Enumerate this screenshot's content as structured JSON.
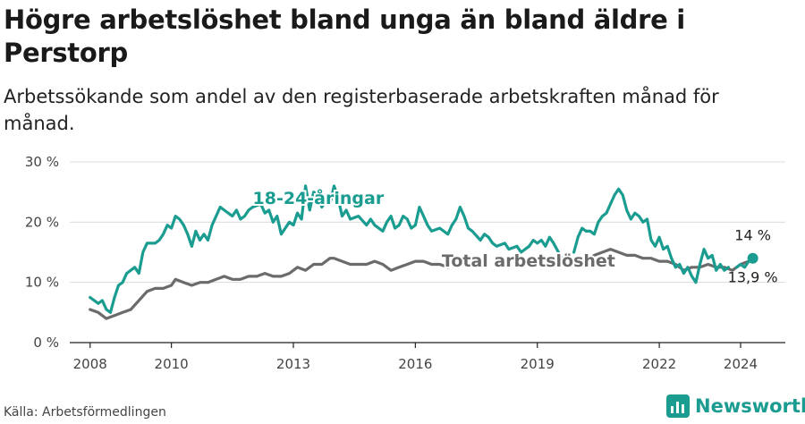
{
  "title": "Högre arbetslöshet bland unga än bland äldre i Perstorp",
  "subtitle": "Arbetssökande som andel av den registerbaserade arbetskraften månad för månad.",
  "source": "Källa: Arbetsförmedlingen",
  "brand": {
    "name": "Newsworthy",
    "icon": "bar-chart-logo-icon",
    "color": "#1a9c90"
  },
  "chart_data": {
    "type": "line",
    "xlim": [
      2007.5,
      2025.1
    ],
    "ylim": [
      0,
      30
    ],
    "x_ticks": [
      {
        "value": 2008,
        "label": "2008"
      },
      {
        "value": 2010,
        "label": "2010"
      },
      {
        "value": 2013,
        "label": "2013"
      },
      {
        "value": 2016,
        "label": "2016"
      },
      {
        "value": 2019,
        "label": "2019"
      },
      {
        "value": 2022,
        "label": "2022"
      },
      {
        "value": 2024,
        "label": "2024"
      }
    ],
    "y_ticks": [
      {
        "value": 0,
        "label": "0 %"
      },
      {
        "value": 10,
        "label": "10 %"
      },
      {
        "value": 20,
        "label": "20 %"
      },
      {
        "value": 30,
        "label": "30 %"
      }
    ],
    "grid": true,
    "series": [
      {
        "name": "18-24-åringar",
        "color": "#1a9c90",
        "end_label": "14 %",
        "points": [
          [
            2008.0,
            7.5
          ],
          [
            2008.2,
            6.5
          ],
          [
            2008.3,
            7.0
          ],
          [
            2008.4,
            5.5
          ],
          [
            2008.5,
            5.0
          ],
          [
            2008.6,
            7.5
          ],
          [
            2008.7,
            9.5
          ],
          [
            2008.8,
            10.0
          ],
          [
            2008.9,
            11.5
          ],
          [
            2009.0,
            12.0
          ],
          [
            2009.1,
            12.5
          ],
          [
            2009.2,
            11.5
          ],
          [
            2009.3,
            15.0
          ],
          [
            2009.4,
            16.5
          ],
          [
            2009.6,
            16.5
          ],
          [
            2009.7,
            17.0
          ],
          [
            2009.8,
            18.0
          ],
          [
            2009.9,
            19.5
          ],
          [
            2010.0,
            19.0
          ],
          [
            2010.1,
            21.0
          ],
          [
            2010.2,
            20.5
          ],
          [
            2010.3,
            19.5
          ],
          [
            2010.4,
            18.0
          ],
          [
            2010.5,
            16.0
          ],
          [
            2010.6,
            18.5
          ],
          [
            2010.7,
            17.0
          ],
          [
            2010.8,
            18.0
          ],
          [
            2010.9,
            17.0
          ],
          [
            2011.0,
            19.5
          ],
          [
            2011.1,
            21.0
          ],
          [
            2011.2,
            22.5
          ],
          [
            2011.3,
            22.0
          ],
          [
            2011.5,
            21.0
          ],
          [
            2011.6,
            22.0
          ],
          [
            2011.7,
            20.5
          ],
          [
            2011.8,
            21.0
          ],
          [
            2011.9,
            22.0
          ],
          [
            2012.0,
            22.5
          ],
          [
            2012.2,
            23.0
          ],
          [
            2012.3,
            21.5
          ],
          [
            2012.4,
            22.0
          ],
          [
            2012.5,
            20.0
          ],
          [
            2012.6,
            21.0
          ],
          [
            2012.7,
            18.0
          ],
          [
            2012.8,
            19.0
          ],
          [
            2012.9,
            20.0
          ],
          [
            2013.0,
            19.5
          ],
          [
            2013.1,
            21.5
          ],
          [
            2013.2,
            20.5
          ],
          [
            2013.3,
            26.0
          ],
          [
            2013.4,
            22.0
          ],
          [
            2013.5,
            25.0
          ],
          [
            2013.6,
            24.5
          ],
          [
            2013.7,
            22.5
          ],
          [
            2013.8,
            23.5
          ],
          [
            2013.9,
            23.0
          ],
          [
            2014.0,
            26.0
          ],
          [
            2014.1,
            24.0
          ],
          [
            2014.2,
            21.0
          ],
          [
            2014.3,
            22.0
          ],
          [
            2014.4,
            20.5
          ],
          [
            2014.6,
            21.0
          ],
          [
            2014.8,
            19.5
          ],
          [
            2014.9,
            20.5
          ],
          [
            2015.0,
            19.5
          ],
          [
            2015.2,
            18.5
          ],
          [
            2015.3,
            20.0
          ],
          [
            2015.4,
            21.0
          ],
          [
            2015.5,
            19.0
          ],
          [
            2015.6,
            19.5
          ],
          [
            2015.7,
            21.0
          ],
          [
            2015.8,
            20.5
          ],
          [
            2015.9,
            19.0
          ],
          [
            2016.0,
            19.5
          ],
          [
            2016.1,
            22.5
          ],
          [
            2016.2,
            21.0
          ],
          [
            2016.3,
            19.5
          ],
          [
            2016.4,
            18.5
          ],
          [
            2016.6,
            19.0
          ],
          [
            2016.8,
            18.0
          ],
          [
            2016.9,
            19.5
          ],
          [
            2017.0,
            20.5
          ],
          [
            2017.1,
            22.5
          ],
          [
            2017.2,
            21.0
          ],
          [
            2017.3,
            19.0
          ],
          [
            2017.4,
            18.5
          ],
          [
            2017.6,
            17.0
          ],
          [
            2017.7,
            18.0
          ],
          [
            2017.8,
            17.5
          ],
          [
            2017.9,
            16.5
          ],
          [
            2018.0,
            16.0
          ],
          [
            2018.2,
            16.5
          ],
          [
            2018.3,
            15.5
          ],
          [
            2018.5,
            16.0
          ],
          [
            2018.6,
            15.0
          ],
          [
            2018.8,
            16.0
          ],
          [
            2018.9,
            17.0
          ],
          [
            2019.0,
            16.5
          ],
          [
            2019.1,
            17.0
          ],
          [
            2019.2,
            16.0
          ],
          [
            2019.3,
            17.5
          ],
          [
            2019.4,
            16.5
          ],
          [
            2019.6,
            14.0
          ]
        ]
      },
      {
        "name": "18-24-åringar",
        "color": "#1a9c90",
        "points": [
          [
            2019.9,
            15.0
          ],
          [
            2020.0,
            17.5
          ],
          [
            2020.1,
            19.0
          ],
          [
            2020.2,
            18.5
          ],
          [
            2020.3,
            18.5
          ],
          [
            2020.4,
            18.0
          ],
          [
            2020.5,
            20.0
          ],
          [
            2020.6,
            21.0
          ],
          [
            2020.7,
            21.5
          ],
          [
            2020.8,
            23.0
          ],
          [
            2020.9,
            24.5
          ],
          [
            2021.0,
            25.5
          ],
          [
            2021.1,
            24.5
          ],
          [
            2021.2,
            22.0
          ],
          [
            2021.3,
            20.5
          ],
          [
            2021.4,
            21.5
          ],
          [
            2021.5,
            21.0
          ],
          [
            2021.6,
            20.0
          ],
          [
            2021.7,
            20.5
          ],
          [
            2021.8,
            17.0
          ],
          [
            2021.9,
            16.0
          ],
          [
            2022.0,
            17.5
          ],
          [
            2022.1,
            15.5
          ],
          [
            2022.2,
            16.0
          ],
          [
            2022.3,
            14.0
          ],
          [
            2022.4,
            12.5
          ],
          [
            2022.5,
            13.0
          ],
          [
            2022.6,
            11.5
          ],
          [
            2022.7,
            12.5
          ],
          [
            2022.8,
            11.0
          ],
          [
            2022.9,
            10.0
          ],
          [
            2023.0,
            13.0
          ],
          [
            2023.1,
            15.5
          ],
          [
            2023.2,
            14.0
          ],
          [
            2023.3,
            14.5
          ],
          [
            2023.4,
            12.0
          ],
          [
            2023.5,
            13.0
          ],
          [
            2023.6,
            12.0
          ],
          [
            2023.7,
            12.5
          ]
        ]
      },
      {
        "name": "18-24-åringar",
        "color": "#1a9c90",
        "points": [
          [
            2023.9,
            12.5
          ],
          [
            2024.0,
            13.0
          ],
          [
            2024.1,
            12.5
          ],
          [
            2024.2,
            13.5
          ],
          [
            2024.3,
            14.0
          ]
        ]
      },
      {
        "name": "Total arbetslöshet",
        "color": "#6b6b6b",
        "end_label": "13,9 %",
        "points": [
          [
            2008.0,
            5.5
          ],
          [
            2008.2,
            5.0
          ],
          [
            2008.4,
            4.0
          ],
          [
            2008.6,
            4.5
          ],
          [
            2008.8,
            5.0
          ],
          [
            2009.0,
            5.5
          ],
          [
            2009.2,
            7.0
          ],
          [
            2009.4,
            8.5
          ],
          [
            2009.6,
            9.0
          ],
          [
            2009.8,
            9.0
          ],
          [
            2010.0,
            9.5
          ],
          [
            2010.1,
            10.5
          ],
          [
            2010.3,
            10.0
          ],
          [
            2010.5,
            9.5
          ],
          [
            2010.7,
            10.0
          ],
          [
            2010.9,
            10.0
          ],
          [
            2011.1,
            10.5
          ],
          [
            2011.3,
            11.0
          ],
          [
            2011.5,
            10.5
          ],
          [
            2011.7,
            10.5
          ],
          [
            2011.9,
            11.0
          ],
          [
            2012.1,
            11.0
          ],
          [
            2012.3,
            11.5
          ],
          [
            2012.5,
            11.0
          ],
          [
            2012.7,
            11.0
          ],
          [
            2012.9,
            11.5
          ],
          [
            2013.1,
            12.5
          ],
          [
            2013.3,
            12.0
          ],
          [
            2013.5,
            13.0
          ],
          [
            2013.7,
            13.0
          ],
          [
            2013.9,
            14.0
          ],
          [
            2014.0,
            14.0
          ],
          [
            2014.2,
            13.5
          ],
          [
            2014.4,
            13.0
          ],
          [
            2014.6,
            13.0
          ],
          [
            2014.8,
            13.0
          ],
          [
            2015.0,
            13.5
          ],
          [
            2015.2,
            13.0
          ],
          [
            2015.4,
            12.0
          ],
          [
            2015.6,
            12.5
          ],
          [
            2015.8,
            13.0
          ],
          [
            2016.0,
            13.5
          ],
          [
            2016.2,
            13.5
          ],
          [
            2016.4,
            13.0
          ],
          [
            2016.6,
            13.0
          ],
          [
            2016.8,
            12.5
          ]
        ]
      },
      {
        "name": "Total arbetslöshet",
        "color": "#6b6b6b",
        "points": [
          [
            2020.2,
            13.5
          ],
          [
            2020.4,
            14.5
          ],
          [
            2020.6,
            15.0
          ],
          [
            2020.8,
            15.5
          ],
          [
            2021.0,
            15.0
          ],
          [
            2021.2,
            14.5
          ],
          [
            2021.4,
            14.5
          ],
          [
            2021.6,
            14.0
          ],
          [
            2021.8,
            14.0
          ],
          [
            2022.0,
            13.5
          ],
          [
            2022.2,
            13.5
          ],
          [
            2022.4,
            13.0
          ],
          [
            2022.6,
            12.0
          ],
          [
            2022.8,
            12.5
          ],
          [
            2023.0,
            12.5
          ],
          [
            2023.2,
            13.0
          ],
          [
            2023.4,
            12.5
          ],
          [
            2023.6,
            12.5
          ],
          [
            2023.8,
            12.0
          ],
          [
            2024.0,
            13.0
          ],
          [
            2024.2,
            13.5
          ],
          [
            2024.3,
            13.9
          ]
        ]
      }
    ],
    "labels": [
      {
        "text": "18-24-åringar",
        "series": "18-24-åringar",
        "x": 2012.0,
        "y": 23.0
      },
      {
        "text": "Total arbetslöshet",
        "series": "Total arbetslöshet",
        "x": 2016.65,
        "y": 12.6
      },
      {
        "text": "14 %",
        "series": "18-24-åringar",
        "x": 2024.3,
        "y": 17.0
      },
      {
        "text": "13,9 %",
        "series": "Total arbetslöshet",
        "x": 2024.3,
        "y": 10.0
      }
    ],
    "end_marker": {
      "series": "18-24-åringar",
      "x": 2024.3,
      "y": 14.0
    }
  }
}
